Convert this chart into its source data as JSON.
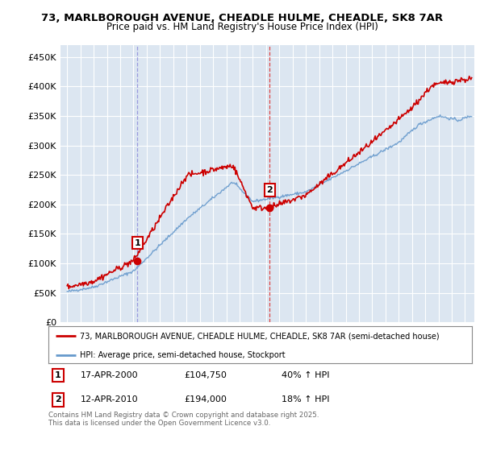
{
  "title1": "73, MARLBOROUGH AVENUE, CHEADLE HULME, CHEADLE, SK8 7AR",
  "title2": "Price paid vs. HM Land Registry's House Price Index (HPI)",
  "ylim": [
    0,
    470000
  ],
  "yticks": [
    0,
    50000,
    100000,
    150000,
    200000,
    250000,
    300000,
    350000,
    400000,
    450000
  ],
  "ytick_labels": [
    "£0",
    "£50K",
    "£100K",
    "£150K",
    "£200K",
    "£250K",
    "£300K",
    "£350K",
    "£400K",
    "£450K"
  ],
  "background_color": "#ffffff",
  "plot_bg_color": "#dce6f1",
  "grid_color": "#ffffff",
  "sale1_date": 2000.29,
  "sale1_price": 104750,
  "sale1_label": "1",
  "sale2_date": 2010.28,
  "sale2_price": 194000,
  "sale2_label": "2",
  "vline1_color": "#9999dd",
  "vline2_color": "#dd4444",
  "sale_dot_color": "#cc0000",
  "line_color_red": "#cc0000",
  "line_color_blue": "#6699cc",
  "legend_label_red": "73, MARLBOROUGH AVENUE, CHEADLE HULME, CHEADLE, SK8 7AR (semi-detached house)",
  "legend_label_blue": "HPI: Average price, semi-detached house, Stockport",
  "footnote": "Contains HM Land Registry data © Crown copyright and database right 2025.\nThis data is licensed under the Open Government Licence v3.0.",
  "xlim_start": 1994.5,
  "xlim_end": 2025.7
}
